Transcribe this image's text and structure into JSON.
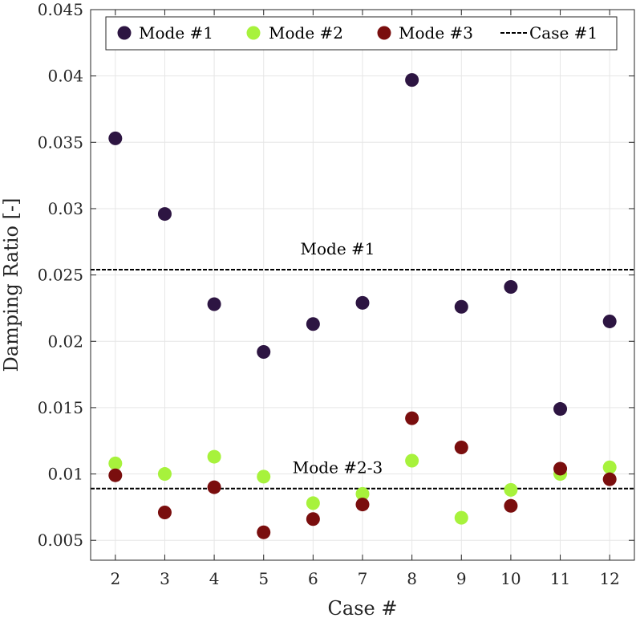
{
  "chart_data": {
    "type": "scatter",
    "xlabel": "Case #",
    "ylabel": "Damping Ratio [-]",
    "x": [
      2,
      3,
      4,
      5,
      6,
      7,
      8,
      9,
      10,
      11,
      12
    ],
    "xlim": [
      1.5,
      12.5
    ],
    "ylim": [
      0.0035,
      0.045
    ],
    "xticks": [
      "2",
      "3",
      "4",
      "5",
      "6",
      "7",
      "8",
      "9",
      "10",
      "11",
      "12"
    ],
    "yticks": [
      "0.005",
      "0.01",
      "0.015",
      "0.02",
      "0.025",
      "0.03",
      "0.035",
      "0.04",
      "0.045"
    ],
    "grid": true,
    "legend_position": "top",
    "series": [
      {
        "name": "Mode #1",
        "color": "#2d1542",
        "values": [
          0.0353,
          0.0296,
          0.0228,
          0.0192,
          0.0213,
          0.0229,
          0.0397,
          0.0226,
          0.0241,
          0.0149,
          0.0215
        ]
      },
      {
        "name": "Mode #2",
        "color": "#a7f23c",
        "values": [
          0.0108,
          0.01,
          0.0113,
          0.0098,
          0.0078,
          0.0085,
          0.011,
          0.0067,
          0.0088,
          0.01,
          0.0105
        ]
      },
      {
        "name": "Mode #3",
        "color": "#7a0e0e",
        "values": [
          0.0099,
          0.0071,
          0.009,
          0.0056,
          0.0066,
          0.0077,
          0.0142,
          0.012,
          0.0076,
          0.0104,
          0.0096
        ]
      }
    ],
    "reference_lines": [
      {
        "legend": "Case #1",
        "label": "Mode #1",
        "value": 0.0254,
        "style": "dashed",
        "color": "#000000"
      },
      {
        "legend": "Case #1",
        "label": "Mode #2-3",
        "value": 0.0089,
        "style": "dashed",
        "color": "#000000"
      }
    ]
  }
}
